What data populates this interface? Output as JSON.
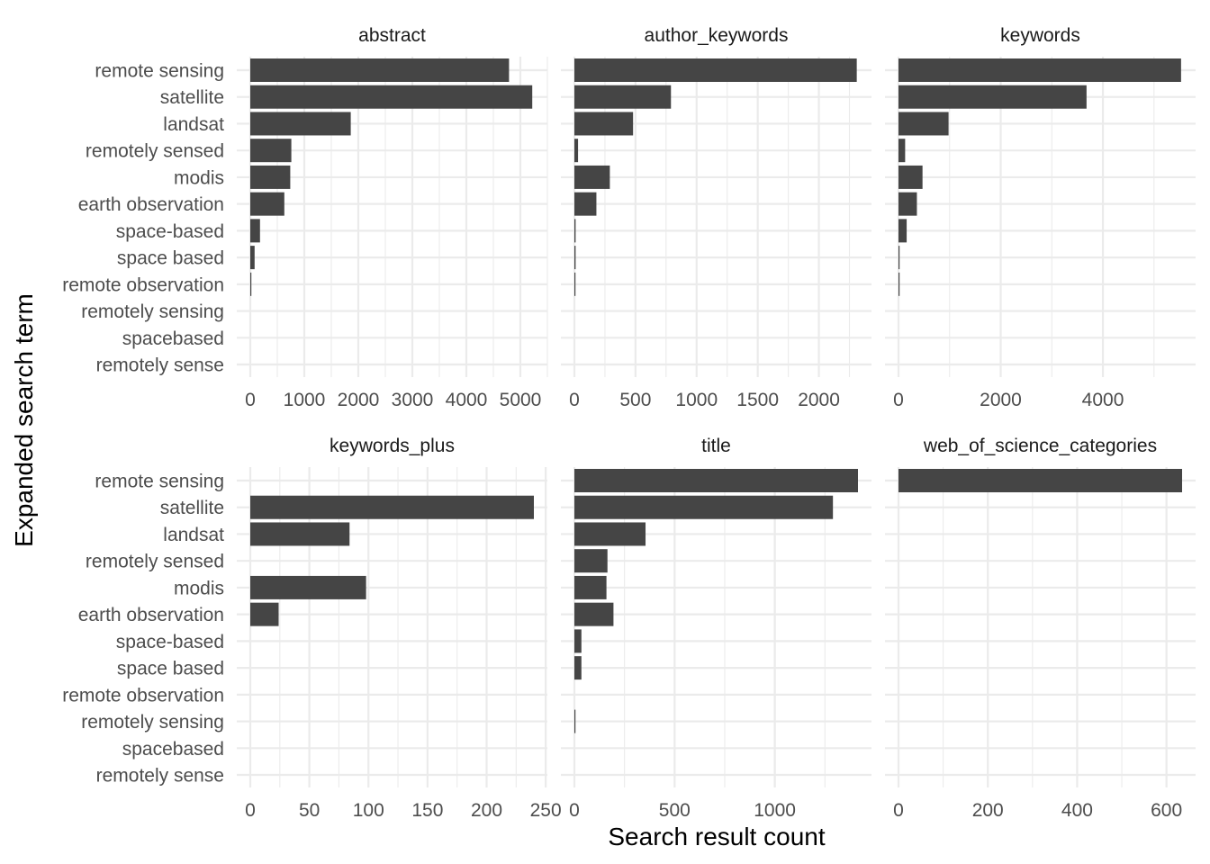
{
  "chart_data": {
    "type": "bar",
    "orientation": "horizontal",
    "layout": "faceted small multiples, 2 rows x 3 columns, independent x scales",
    "xlabel": "Search result count",
    "ylabel": "Expanded search term",
    "grid": true,
    "categories": [
      "remote sensing",
      "satellite",
      "landsat",
      "remotely sensed",
      "modis",
      "earth observation",
      "space-based",
      "space based",
      "remote observation",
      "remotely sensing",
      "spacebased",
      "remotely sense"
    ],
    "facets": [
      {
        "name": "abstract",
        "xlim": [
          0,
          5250
        ],
        "ticks": [
          0,
          1000,
          2000,
          3000,
          4000,
          5000
        ],
        "values": [
          4790,
          5220,
          1860,
          760,
          740,
          630,
          180,
          80,
          20,
          0,
          0,
          0
        ]
      },
      {
        "name": "author_keywords",
        "xlim": [
          0,
          2320
        ],
        "ticks": [
          0,
          500,
          1000,
          1500,
          2000
        ],
        "values": [
          2310,
          790,
          480,
          30,
          290,
          180,
          10,
          10,
          3,
          0,
          0,
          0
        ]
      },
      {
        "name": "keywords",
        "xlim": [
          0,
          5550
        ],
        "ticks": [
          0,
          2000,
          4000
        ],
        "values": [
          5530,
          3680,
          980,
          130,
          470,
          360,
          160,
          20,
          15,
          0,
          0,
          0
        ]
      },
      {
        "name": "keywords_plus",
        "xlim": [
          0,
          240
        ],
        "ticks": [
          0,
          50,
          100,
          150,
          200,
          250
        ],
        "values": [
          0,
          240,
          84,
          0,
          98,
          24,
          0,
          0,
          0,
          0,
          0,
          0
        ]
      },
      {
        "name": "title",
        "xlim": [
          0,
          1415
        ],
        "ticks": [
          0,
          500,
          1000
        ],
        "values": [
          1415,
          1290,
          355,
          165,
          160,
          195,
          35,
          35,
          0,
          5,
          0,
          0
        ]
      },
      {
        "name": "web_of_science_categories",
        "xlim": [
          0,
          635
        ],
        "ticks": [
          0,
          200,
          400,
          600
        ],
        "values": [
          635,
          0,
          0,
          0,
          0,
          0,
          0,
          0,
          0,
          0,
          0,
          0
        ]
      }
    ]
  }
}
